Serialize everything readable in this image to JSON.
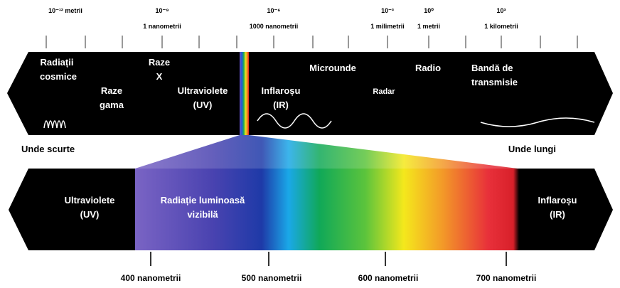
{
  "scale": {
    "labels": [
      {
        "power": "10⁻¹² metrii"
      },
      {
        "power": "10⁻⁹",
        "unit": "1 nanometrii"
      },
      {
        "power": "10⁻⁶",
        "unit": "1000 nanometrii"
      },
      {
        "power": "10⁻³",
        "unit": "1 milimetrii"
      },
      {
        "power": "10⁰",
        "unit": "1 metrii"
      },
      {
        "power": "10³",
        "unit": "1 kilometrii"
      }
    ]
  },
  "spectrum": {
    "bands": [
      {
        "lines": [
          "Radiații",
          "cosmice"
        ]
      },
      {
        "lines": [
          "Raze",
          "gama"
        ]
      },
      {
        "lines": [
          "Raze",
          "X"
        ]
      },
      {
        "lines": [
          "Ultraviolete",
          "(UV)"
        ]
      },
      {
        "lines": [
          "Inflaroșu",
          "(IR)"
        ]
      },
      {
        "lines": [
          "Microunde"
        ]
      },
      {
        "lines": [
          "Radar"
        ]
      },
      {
        "lines": [
          "Radio"
        ]
      },
      {
        "lines": [
          "Bandă de",
          "transmisie"
        ]
      }
    ],
    "short": "Unde scurte",
    "long": "Unde lungi"
  },
  "visible": {
    "bands": [
      {
        "lines": [
          "Ultraviolete",
          "(UV)"
        ]
      },
      {
        "lines": [
          "Radiație luminoasă",
          "vizibilă"
        ]
      },
      {
        "lines": [
          "Inflaroșu",
          "(IR)"
        ]
      }
    ],
    "wavelengths": [
      "400 nanometrii",
      "500 nanometrii",
      "600 nanometrii",
      "700 nanometrii"
    ]
  }
}
